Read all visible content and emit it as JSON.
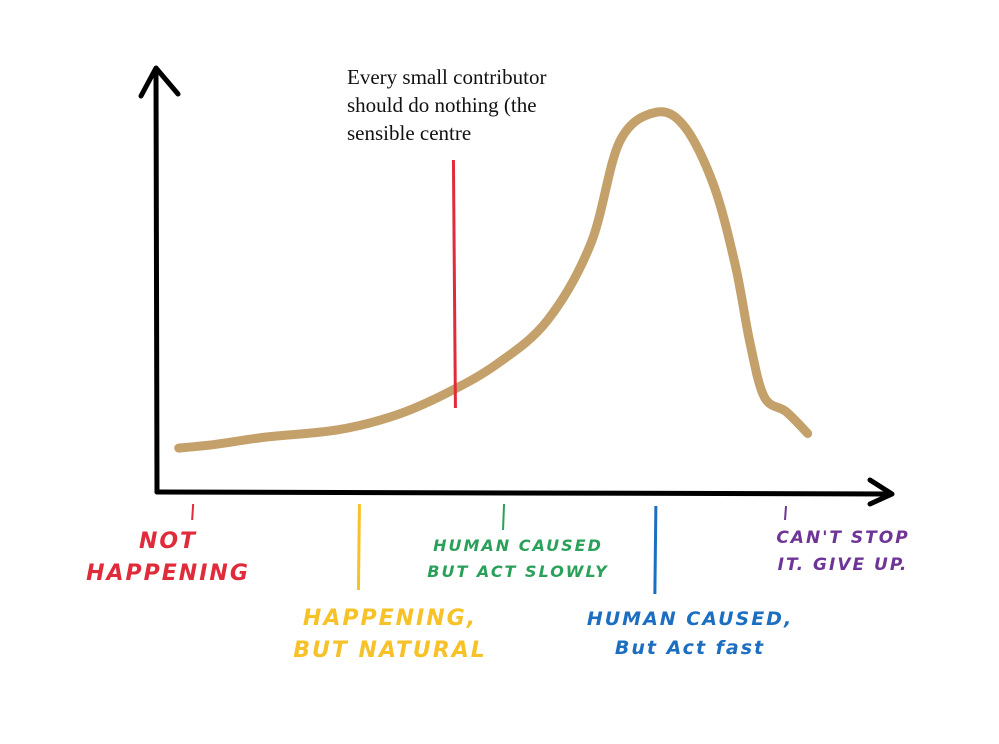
{
  "chart_data": {
    "type": "line",
    "title": "",
    "xlabel": "",
    "ylabel": "",
    "grid": false,
    "x_range": [
      0,
      100
    ],
    "y_range": [
      0,
      100
    ],
    "curve_color": "#c4a06a",
    "series": [
      {
        "points": [
          [
            3,
            6
          ],
          [
            8,
            7
          ],
          [
            15,
            9
          ],
          [
            25,
            11
          ],
          [
            33,
            15
          ],
          [
            40,
            21
          ],
          [
            47,
            29
          ],
          [
            54,
            41
          ],
          [
            60,
            62
          ],
          [
            64,
            90
          ],
          [
            69,
            98
          ],
          [
            73,
            94
          ],
          [
            77,
            78
          ],
          [
            80,
            56
          ],
          [
            82,
            35
          ],
          [
            84,
            20
          ],
          [
            87,
            16
          ],
          [
            90,
            10
          ]
        ]
      }
    ],
    "annotation": {
      "lines": [
        "Every small contributor",
        "should do nothing (the",
        "sensible centre"
      ],
      "marker_x": 41,
      "marker_color": "#e02b3b"
    },
    "categories": [
      {
        "lines": [
          "NOT",
          "HAPPENING"
        ],
        "x": 5,
        "color": "#e02b3b"
      },
      {
        "lines": [
          "HAPPENING,",
          "BUT NATURAL"
        ],
        "x": 28,
        "color": "#f6c227"
      },
      {
        "lines": [
          "HUMAN CAUSED",
          "BUT ACT SLOWLY"
        ],
        "x": 48,
        "color": "#2aa05a"
      },
      {
        "lines": [
          "HUMAN CAUSED,",
          "But Act fast"
        ],
        "x": 69,
        "color": "#1c6fc0"
      },
      {
        "lines": [
          "CAN'T STOP",
          "IT. GIVE UP."
        ],
        "x": 87,
        "color": "#6e3496"
      }
    ]
  }
}
